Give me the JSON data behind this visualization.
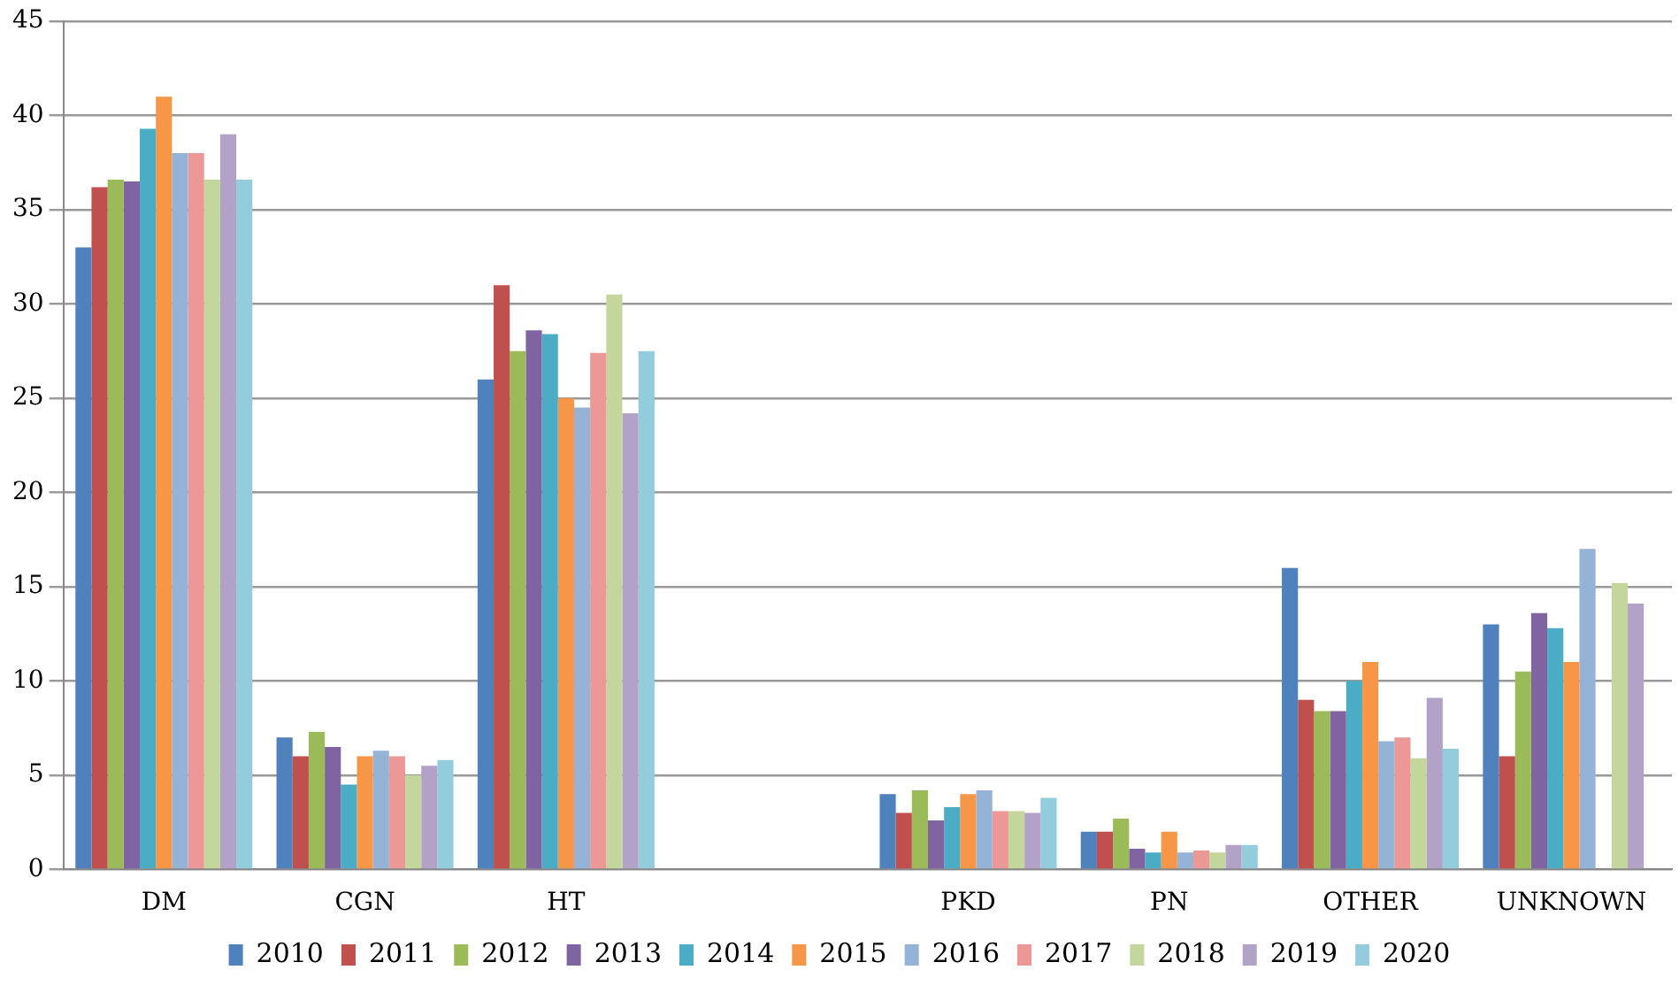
{
  "chart_data": {
    "type": "bar",
    "categories": [
      "DM",
      "CGN",
      "HT",
      null,
      "PKD",
      "PN",
      "OTHER",
      "UNKNOWN"
    ],
    "series": [
      {
        "name": "2010",
        "color": "#4f81bd",
        "values": [
          33,
          7,
          26,
          null,
          4,
          2,
          16,
          13
        ]
      },
      {
        "name": "2011",
        "color": "#c0504d",
        "values": [
          36.2,
          6,
          31,
          null,
          3,
          2,
          9,
          6
        ]
      },
      {
        "name": "2012",
        "color": "#9bbb59",
        "values": [
          36.6,
          7.3,
          27.5,
          null,
          4.2,
          2.7,
          8.4,
          10.5
        ]
      },
      {
        "name": "2013",
        "color": "#8064a2",
        "values": [
          36.5,
          6.5,
          28.6,
          null,
          2.6,
          1.1,
          8.4,
          13.6
        ]
      },
      {
        "name": "2014",
        "color": "#4bacc6",
        "values": [
          39.3,
          4.5,
          28.4,
          null,
          3.3,
          0.9,
          10,
          12.8
        ]
      },
      {
        "name": "2015",
        "color": "#f79646",
        "values": [
          41,
          6,
          25,
          null,
          4,
          2,
          11,
          11
        ]
      },
      {
        "name": "2016",
        "color": "#95b3d7",
        "values": [
          38,
          6.3,
          24.5,
          null,
          4.2,
          0.9,
          6.8,
          17
        ]
      },
      {
        "name": "2017",
        "color": "#eb9896",
        "values": [
          38,
          6,
          27.4,
          null,
          3.1,
          1,
          7,
          null
        ]
      },
      {
        "name": "2018",
        "color": "#c3d69b",
        "values": [
          36.6,
          5,
          30.5,
          null,
          3.1,
          0.9,
          5.9,
          15.2
        ]
      },
      {
        "name": "2019",
        "color": "#b3a2c7",
        "values": [
          39,
          5.5,
          24.2,
          null,
          3,
          1.3,
          9.1,
          14.1
        ]
      },
      {
        "name": "2020",
        "color": "#93cddd",
        "values": [
          36.6,
          5.8,
          27.5,
          null,
          3.8,
          1.3,
          6.4,
          null
        ]
      }
    ],
    "ylim": [
      0,
      45
    ],
    "yticks": [
      0,
      5,
      10,
      15,
      20,
      25,
      30,
      35,
      40,
      45
    ],
    "grid": "y",
    "legend": "bottom"
  }
}
